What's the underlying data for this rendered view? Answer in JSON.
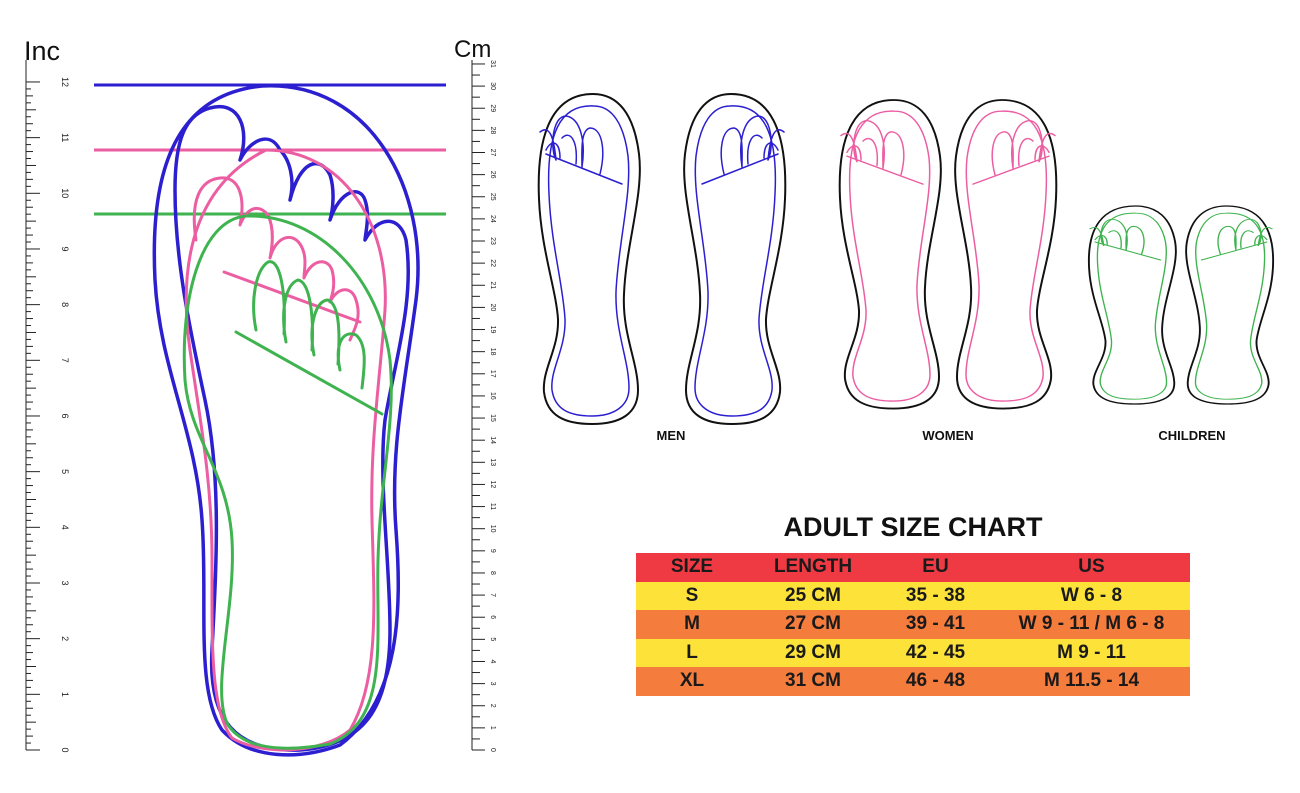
{
  "ruler": {
    "left_unit": "Inc",
    "right_unit": "Cm",
    "inch_labels": [
      "0",
      "1",
      "2",
      "3",
      "4",
      "5",
      "6",
      "7",
      "8",
      "9",
      "10",
      "11",
      "12"
    ],
    "cm_labels": [
      "0",
      "1",
      "2",
      "3",
      "4",
      "5",
      "6",
      "7",
      "8",
      "9",
      "10",
      "11",
      "12",
      "13",
      "14",
      "15",
      "16",
      "17",
      "18",
      "19",
      "20",
      "21",
      "22",
      "23",
      "24",
      "25",
      "26",
      "27",
      "28",
      "29",
      "30",
      "31"
    ]
  },
  "foot_groups": [
    "MEN",
    "WOMEN",
    "CHILDREN"
  ],
  "size_chart": {
    "title": "ADULT SIZE CHART",
    "headers": [
      "SIZE",
      "LENGTH",
      "EU",
      "US"
    ],
    "rows": [
      [
        "S",
        "25 CM",
        "35 - 38",
        "W 6 - 8"
      ],
      [
        "M",
        "27 CM",
        "39 - 41",
        "W 9 - 11 / M 6 - 8"
      ],
      [
        "L",
        "29 CM",
        "42 - 45",
        "M 9 - 11"
      ],
      [
        "XL",
        "31 CM",
        "46 - 48",
        "M 11.5 - 14"
      ]
    ]
  },
  "colors": {
    "men": "#2b1fd0",
    "women": "#ec5ea2",
    "children": "#3fb34f",
    "outline": "#111111",
    "header_row": "#ef3a43",
    "row_yellow": "#fde23a",
    "row_orange": "#f47c3d"
  }
}
